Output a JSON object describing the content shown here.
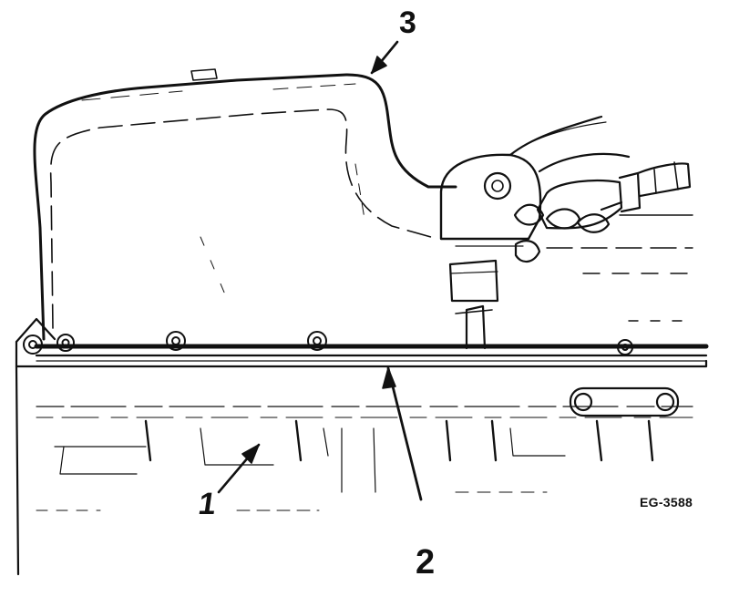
{
  "callouts": {
    "one": "1",
    "two": "2",
    "three": "3"
  },
  "figure_code": "EG-3588",
  "colors": {
    "ink": "#111111",
    "paper": "#ffffff"
  }
}
